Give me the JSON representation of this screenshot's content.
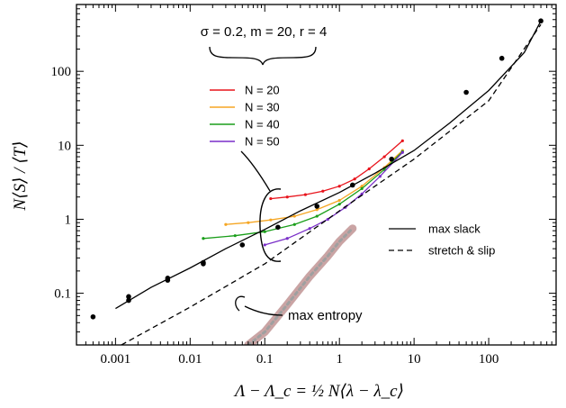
{
  "chart_data": {
    "type": "line",
    "xscale": "log",
    "yscale": "log",
    "xlim": [
      0.0003,
      800
    ],
    "ylim": [
      0.02,
      800
    ],
    "xlabel": "Λ − Λ_c = ½ N⟨λ − λ_c⟩",
    "ylabel": "N⟨S⟩ / ⟨T⟩",
    "x_ticks": [
      {
        "value": 0.001,
        "label": "0.001"
      },
      {
        "value": 0.01,
        "label": "0.01"
      },
      {
        "value": 0.1,
        "label": "0.1"
      },
      {
        "value": 1,
        "label": "1"
      },
      {
        "value": 10,
        "label": "10"
      },
      {
        "value": 100,
        "label": "100"
      }
    ],
    "y_ticks": [
      {
        "value": 0.1,
        "label": "0.1"
      },
      {
        "value": 1,
        "label": "1"
      },
      {
        "value": 10,
        "label": "10"
      },
      {
        "value": 100,
        "label": "100"
      }
    ],
    "params_label": "σ = 0.2, m = 20, r = 4",
    "series": [
      {
        "name": "N = 20",
        "color": "#e8141c",
        "style": "line-dots",
        "x": [
          0.12,
          0.2,
          0.35,
          0.6,
          1.0,
          1.6,
          2.5,
          4.0,
          7.0
        ],
        "y": [
          1.9,
          2.0,
          2.15,
          2.4,
          2.8,
          3.5,
          4.8,
          7.0,
          11.5
        ]
      },
      {
        "name": "N = 30",
        "color": "#f5a623",
        "style": "line-dots",
        "x": [
          0.03,
          0.06,
          0.12,
          0.25,
          0.5,
          1.0,
          2.0,
          4.0,
          7.0
        ],
        "y": [
          0.85,
          0.9,
          0.98,
          1.1,
          1.35,
          1.8,
          2.8,
          5.0,
          8.5
        ]
      },
      {
        "name": "N = 40",
        "color": "#1a9e1a",
        "style": "line-dots",
        "x": [
          0.015,
          0.04,
          0.1,
          0.25,
          0.5,
          1.0,
          2.0,
          4.0,
          7.0
        ],
        "y": [
          0.55,
          0.6,
          0.68,
          0.85,
          1.1,
          1.6,
          2.6,
          4.7,
          8.2
        ]
      },
      {
        "name": "N = 50",
        "color": "#7a2fc8",
        "style": "line-dots",
        "x": [
          0.1,
          0.2,
          0.4,
          0.7,
          1.2,
          2.0,
          3.5,
          7.0
        ],
        "y": [
          0.45,
          0.55,
          0.75,
          1.0,
          1.45,
          2.2,
          3.8,
          8.0
        ]
      },
      {
        "name": "max slack",
        "color": "#000000",
        "style": "solid",
        "x": [
          0.001,
          0.003,
          0.01,
          0.03,
          0.1,
          0.3,
          1,
          3,
          10,
          30,
          100,
          300,
          500
        ],
        "y": [
          0.062,
          0.12,
          0.22,
          0.4,
          0.73,
          1.3,
          2.3,
          4.2,
          8.5,
          20,
          55,
          180,
          480
        ]
      },
      {
        "name": "stretch & slip",
        "color": "#000000",
        "style": "dashed",
        "x": [
          0.0012,
          0.01,
          0.1,
          1,
          10,
          100,
          500
        ],
        "y": [
          0.02,
          0.065,
          0.25,
          1.3,
          6.5,
          40,
          430
        ]
      },
      {
        "name": "data points",
        "color": "#000000",
        "style": "markers",
        "x": [
          0.0005,
          0.0015,
          0.0015,
          0.005,
          0.005,
          0.015,
          0.015,
          0.05,
          0.15,
          0.5,
          1.5,
          5,
          50,
          150,
          500
        ],
        "y": [
          0.048,
          0.08,
          0.09,
          0.15,
          0.16,
          0.25,
          0.26,
          0.45,
          0.78,
          1.5,
          2.9,
          6.5,
          52,
          150,
          480
        ]
      },
      {
        "name": "max entropy",
        "color": "#c49a9a",
        "style": "band",
        "x": [
          0.06,
          0.1,
          0.2,
          0.4,
          0.7,
          1.0,
          1.5
        ],
        "y": [
          0.02,
          0.03,
          0.07,
          0.17,
          0.32,
          0.5,
          0.75
        ]
      }
    ],
    "legend": {
      "position": "upper-center",
      "entries": [
        "N = 20",
        "N = 30",
        "N = 40",
        "N = 50"
      ]
    },
    "legend2": {
      "position": "right",
      "entries": [
        {
          "label": "max slack",
          "style": "solid"
        },
        {
          "label": "stretch & slip",
          "style": "dashed"
        }
      ]
    },
    "annotations": [
      {
        "text": "max entropy",
        "target": "max entropy"
      }
    ],
    "grid": false
  }
}
